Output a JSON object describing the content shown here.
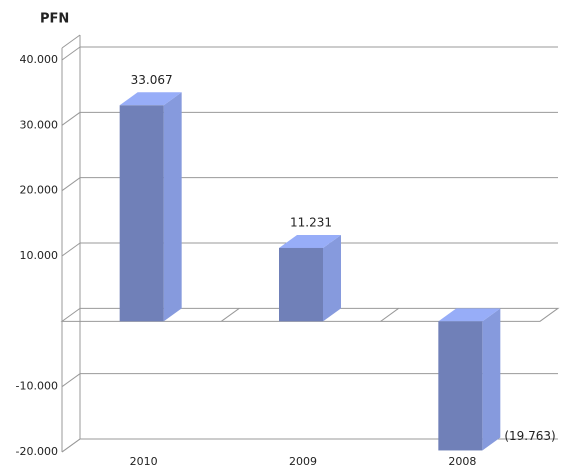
{
  "chart_data": {
    "type": "bar3d",
    "title": "PFN",
    "categories": [
      "2010",
      "2009",
      "2008"
    ],
    "values": [
      33067,
      11231,
      -19763
    ],
    "value_labels": [
      "33.067",
      "11.231",
      "(19.763)"
    ],
    "color": "#7080b8",
    "ylim": [
      -20000,
      40000
    ],
    "yticks": [
      {
        "value": -20000,
        "label": "-20.000"
      },
      {
        "value": -10000,
        "label": "-10.000"
      },
      {
        "value": 10000,
        "label": "10.000"
      },
      {
        "value": 20000,
        "label": "20.000"
      },
      {
        "value": 30000,
        "label": "30.000"
      },
      {
        "value": 40000,
        "label": "40.000"
      }
    ],
    "grid": true
  }
}
